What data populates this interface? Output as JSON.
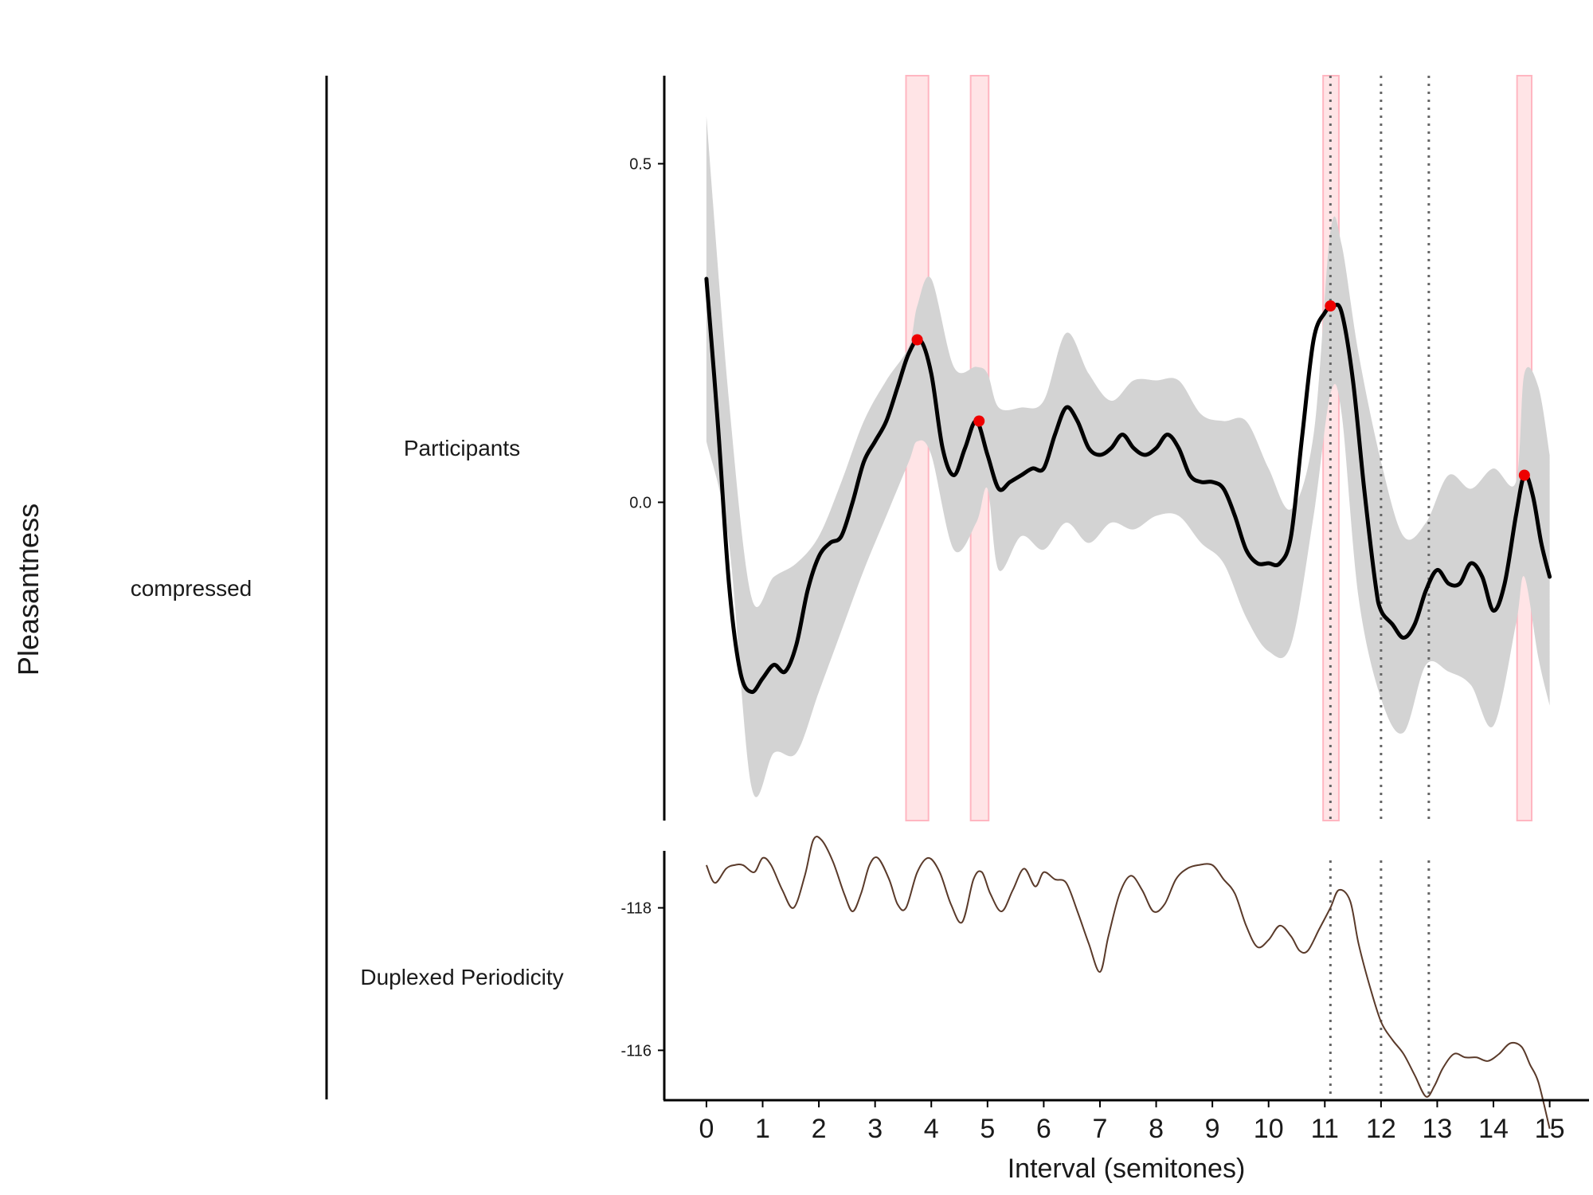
{
  "labels": {
    "y_axis_title": "Pleasantness",
    "x_axis_title": "Interval (semitones)",
    "group_label": "compressed",
    "top_panel_label": "Participants",
    "bottom_panel_label": "Duplexed Periodicity"
  },
  "colors": {
    "curve": "#000000",
    "ribbon": "#d3d3d3",
    "peak_points": "#ee0000",
    "highlight_fill": "#ffe4e6",
    "highlight_edge": "#ffb6c1",
    "model_curve": "#5a3a2a",
    "reference_lines": "#666666"
  },
  "chart_data": [
    {
      "type": "line",
      "panel": "Participants",
      "xlim": [
        -0.75,
        15.7
      ],
      "ylim": [
        -0.47,
        0.63
      ],
      "yticks": [
        0.0,
        0.5
      ],
      "ytick_labels": [
        "0.0",
        "0.5"
      ],
      "xticks": [
        0,
        1,
        2,
        3,
        4,
        5,
        6,
        7,
        8,
        9,
        10,
        11,
        12,
        13,
        14,
        15
      ],
      "xtick_labels": [
        "0",
        "1",
        "2",
        "3",
        "4",
        "5",
        "6",
        "7",
        "8",
        "9",
        "10",
        "11",
        "12",
        "13",
        "14",
        "15"
      ],
      "series": [
        {
          "role": "mean",
          "x": [
            0.0,
            0.2,
            0.4,
            0.6,
            0.8,
            1.0,
            1.2,
            1.4,
            1.6,
            1.8,
            2.0,
            2.2,
            2.4,
            2.6,
            2.8,
            3.0,
            3.2,
            3.4,
            3.6,
            3.8,
            4.0,
            4.2,
            4.4,
            4.6,
            4.8,
            5.0,
            5.2,
            5.4,
            5.6,
            5.8,
            6.0,
            6.2,
            6.4,
            6.6,
            6.8,
            7.0,
            7.2,
            7.4,
            7.6,
            7.8,
            8.0,
            8.2,
            8.4,
            8.6,
            8.8,
            9.0,
            9.2,
            9.4,
            9.6,
            9.8,
            10.0,
            10.2,
            10.4,
            10.6,
            10.8,
            11.0,
            11.15,
            11.3,
            11.5,
            11.7,
            11.9,
            12.0,
            12.2,
            12.4,
            12.6,
            12.8,
            13.0,
            13.2,
            13.4,
            13.6,
            13.8,
            14.0,
            14.2,
            14.4,
            14.55,
            14.7,
            14.85,
            15.0
          ],
          "y": [
            0.33,
            0.12,
            -0.12,
            -0.25,
            -0.28,
            -0.26,
            -0.24,
            -0.25,
            -0.21,
            -0.13,
            -0.08,
            -0.06,
            -0.05,
            0.0,
            0.06,
            0.09,
            0.12,
            0.17,
            0.22,
            0.24,
            0.19,
            0.08,
            0.04,
            0.08,
            0.12,
            0.07,
            0.02,
            0.03,
            0.04,
            0.05,
            0.05,
            0.1,
            0.14,
            0.12,
            0.08,
            0.07,
            0.08,
            0.1,
            0.08,
            0.07,
            0.08,
            0.1,
            0.08,
            0.04,
            0.03,
            0.03,
            0.02,
            -0.02,
            -0.07,
            -0.09,
            -0.09,
            -0.09,
            -0.05,
            0.1,
            0.24,
            0.28,
            0.29,
            0.28,
            0.18,
            0.02,
            -0.12,
            -0.16,
            -0.18,
            -0.2,
            -0.18,
            -0.13,
            -0.1,
            -0.12,
            -0.12,
            -0.09,
            -0.11,
            -0.16,
            -0.12,
            -0.02,
            0.04,
            0.01,
            -0.06,
            -0.11
          ]
        },
        {
          "role": "ci_upper",
          "x": [
            0.0,
            0.4,
            0.8,
            1.2,
            1.6,
            2.0,
            2.4,
            2.8,
            3.2,
            3.6,
            3.75,
            4.0,
            4.4,
            4.8,
            5.0,
            5.2,
            5.6,
            6.0,
            6.4,
            6.8,
            7.2,
            7.6,
            8.0,
            8.4,
            8.8,
            9.2,
            9.6,
            10.0,
            10.4,
            10.8,
            11.1,
            11.3,
            11.6,
            12.0,
            12.4,
            12.8,
            13.2,
            13.6,
            14.0,
            14.4,
            14.55,
            14.8,
            15.0
          ],
          "y": [
            0.57,
            0.15,
            -0.14,
            -0.11,
            -0.09,
            -0.05,
            0.03,
            0.12,
            0.18,
            0.23,
            0.29,
            0.33,
            0.2,
            0.2,
            0.19,
            0.14,
            0.14,
            0.15,
            0.25,
            0.19,
            0.15,
            0.18,
            0.18,
            0.18,
            0.13,
            0.12,
            0.12,
            0.05,
            -0.01,
            0.1,
            0.4,
            0.38,
            0.22,
            0.06,
            -0.05,
            -0.03,
            0.04,
            0.02,
            0.05,
            0.03,
            0.19,
            0.17,
            0.07
          ]
        },
        {
          "role": "ci_lower",
          "x": [
            0.0,
            0.4,
            0.8,
            1.2,
            1.6,
            2.0,
            2.4,
            2.8,
            3.2,
            3.6,
            3.75,
            4.0,
            4.4,
            4.8,
            5.0,
            5.2,
            5.6,
            6.0,
            6.4,
            6.8,
            7.2,
            7.6,
            8.0,
            8.4,
            8.8,
            9.2,
            9.6,
            10.0,
            10.4,
            10.8,
            11.1,
            11.3,
            11.6,
            12.0,
            12.4,
            12.8,
            13.2,
            13.6,
            14.0,
            14.4,
            14.55,
            14.8,
            15.0
          ],
          "y": [
            0.09,
            -0.06,
            -0.42,
            -0.37,
            -0.37,
            -0.28,
            -0.19,
            -0.1,
            -0.02,
            0.06,
            0.09,
            0.07,
            -0.07,
            -0.03,
            0.02,
            -0.1,
            -0.05,
            -0.07,
            -0.03,
            -0.06,
            -0.03,
            -0.04,
            -0.02,
            -0.02,
            -0.06,
            -0.09,
            -0.17,
            -0.22,
            -0.21,
            -0.02,
            0.16,
            0.13,
            -0.14,
            -0.29,
            -0.34,
            -0.24,
            -0.25,
            -0.27,
            -0.33,
            -0.18,
            -0.11,
            -0.23,
            -0.3
          ]
        },
        {
          "role": "peaks",
          "x": [
            3.75,
            4.85,
            11.1,
            14.55
          ],
          "y": [
            0.24,
            0.12,
            0.29,
            0.04
          ]
        }
      ],
      "highlight_bands": [
        {
          "x0": 3.55,
          "x1": 3.95
        },
        {
          "x0": 4.7,
          "x1": 5.02
        },
        {
          "x0": 10.97,
          "x1": 11.25
        },
        {
          "x0": 14.42,
          "x1": 14.68
        }
      ],
      "reference_lines_x": [
        11.1,
        12.0,
        12.85
      ]
    },
    {
      "type": "line",
      "panel": "Duplexed Periodicity",
      "xlim": [
        -0.75,
        15.7
      ],
      "ylim": [
        -115.3,
        -118.8
      ],
      "yticks": [
        -118,
        -116
      ],
      "ytick_labels": [
        "-118",
        "-116"
      ],
      "series": [
        {
          "role": "model",
          "x": [
            0.0,
            0.15,
            0.35,
            0.5,
            0.65,
            0.85,
            1.0,
            1.15,
            1.35,
            1.55,
            1.75,
            1.9,
            2.05,
            2.25,
            2.45,
            2.6,
            2.75,
            2.9,
            3.05,
            3.25,
            3.4,
            3.55,
            3.75,
            3.95,
            4.15,
            4.35,
            4.55,
            4.75,
            4.9,
            5.05,
            5.25,
            5.45,
            5.65,
            5.85,
            6.0,
            6.2,
            6.4,
            6.6,
            6.8,
            7.0,
            7.15,
            7.35,
            7.55,
            7.75,
            7.95,
            8.15,
            8.35,
            8.55,
            8.75,
            9.0,
            9.2,
            9.4,
            9.6,
            9.8,
            10.0,
            10.2,
            10.4,
            10.55,
            10.7,
            10.9,
            11.1,
            11.25,
            11.45,
            11.6,
            11.8,
            12.0,
            12.2,
            12.4,
            12.6,
            12.8,
            12.95,
            13.1,
            13.3,
            13.5,
            13.7,
            13.9,
            14.1,
            14.3,
            14.5,
            14.65,
            14.8,
            15.0
          ],
          "y": [
            -118.6,
            -118.35,
            -118.55,
            -118.6,
            -118.6,
            -118.5,
            -118.7,
            -118.6,
            -118.25,
            -118.0,
            -118.45,
            -118.95,
            -118.95,
            -118.65,
            -118.2,
            -117.95,
            -118.2,
            -118.6,
            -118.7,
            -118.4,
            -118.05,
            -118.0,
            -118.5,
            -118.7,
            -118.5,
            -118.05,
            -117.8,
            -118.4,
            -118.5,
            -118.2,
            -117.95,
            -118.25,
            -118.55,
            -118.3,
            -118.5,
            -118.4,
            -118.35,
            -117.95,
            -117.5,
            -117.1,
            -117.6,
            -118.2,
            -118.45,
            -118.25,
            -117.95,
            -118.05,
            -118.4,
            -118.55,
            -118.6,
            -118.6,
            -118.4,
            -118.2,
            -117.75,
            -117.45,
            -117.55,
            -117.75,
            -117.6,
            -117.4,
            -117.4,
            -117.7,
            -118.0,
            -118.25,
            -118.1,
            -117.5,
            -116.9,
            -116.4,
            -116.15,
            -115.95,
            -115.65,
            -115.35,
            -115.5,
            -115.75,
            -115.95,
            -115.9,
            -115.9,
            -115.85,
            -115.95,
            -116.1,
            -116.05,
            -115.8,
            -115.55,
            -114.9
          ]
        }
      ],
      "reference_lines_x": [
        11.1,
        12.0,
        12.85
      ]
    }
  ]
}
